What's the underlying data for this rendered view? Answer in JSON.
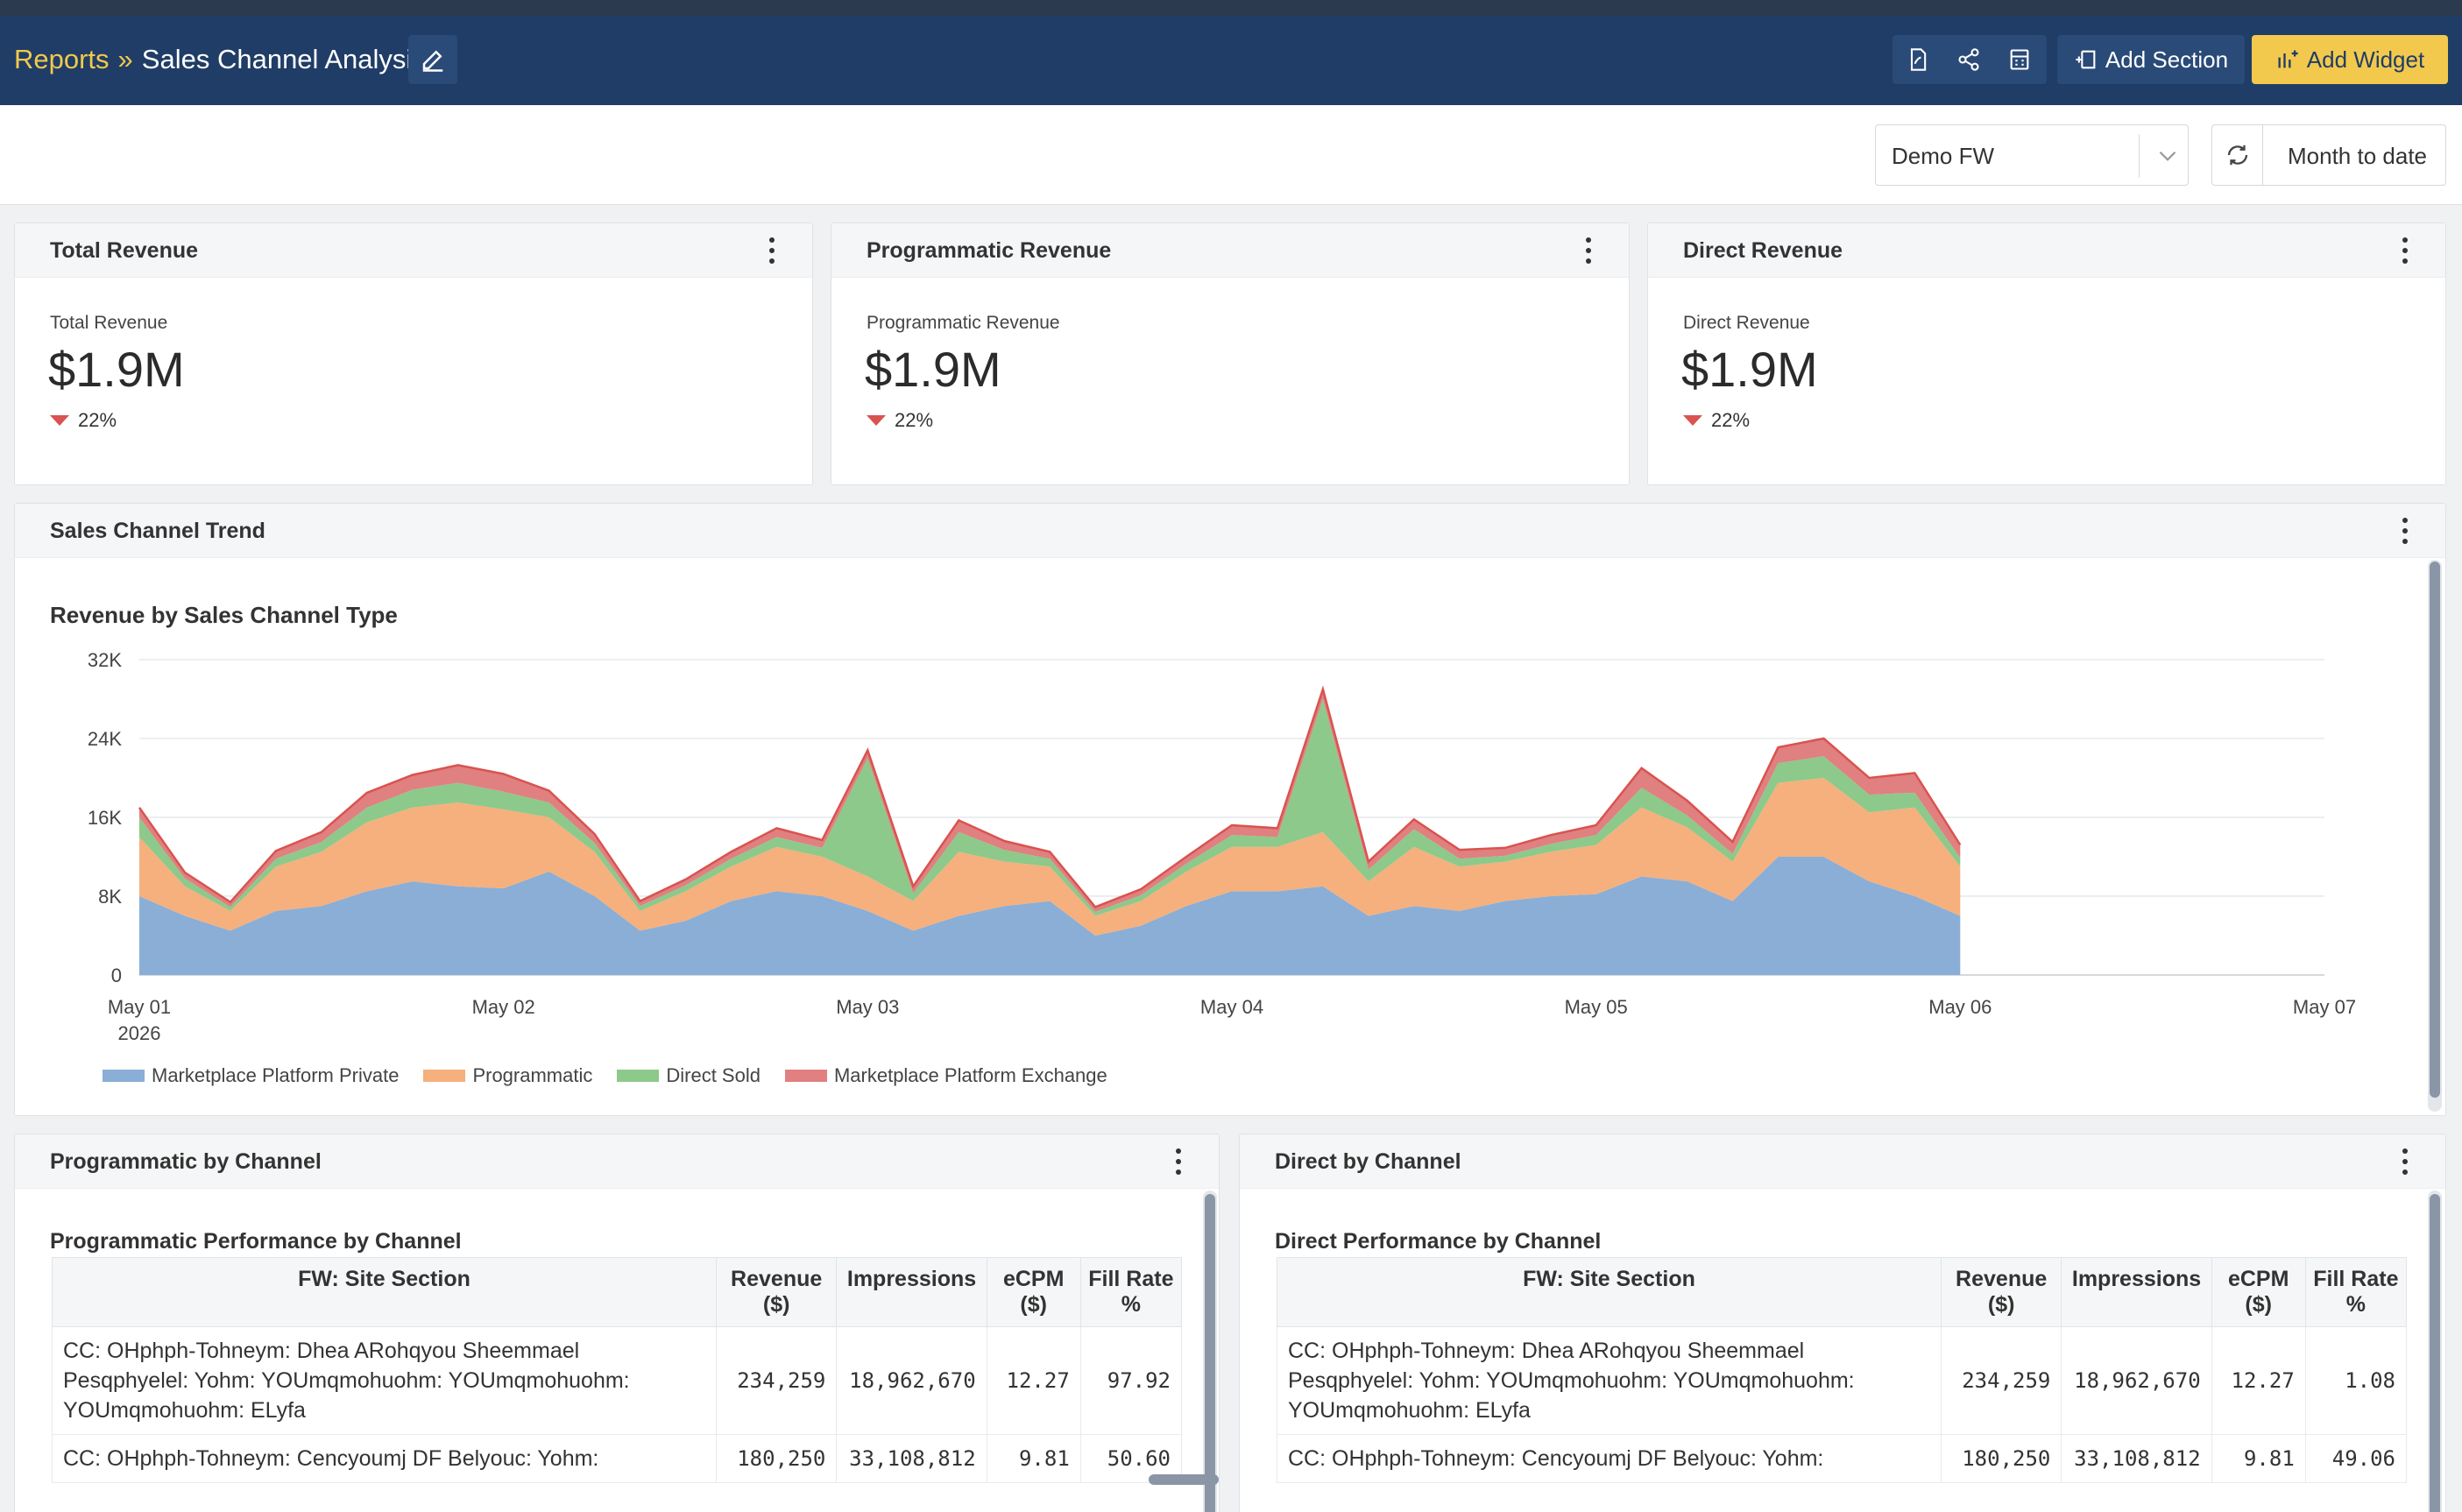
{
  "header": {
    "breadcrumb_link": "Reports",
    "breadcrumb_sep": "»",
    "page_title": "Sales Channel Analysis",
    "add_section_label": "Add Section",
    "add_widget_label": "Add Widget"
  },
  "filters": {
    "network_value": "Demo FW",
    "date_range_label": "Month to date"
  },
  "kpis": [
    {
      "title": "Total Revenue",
      "label": "Total Revenue",
      "value": "$1.9M",
      "change": "22%"
    },
    {
      "title": "Programmatic Revenue",
      "label": "Programmatic Revenue",
      "value": "$1.9M",
      "change": "22%"
    },
    {
      "title": "Direct Revenue",
      "label": "Direct Revenue",
      "value": "$1.9M",
      "change": "22%"
    }
  ],
  "trend": {
    "card_title": "Sales Channel Trend",
    "colors": {
      "private": "#8aaed6",
      "programmatic": "#f5b07d",
      "direct": "#8dc98a",
      "exchange": "#e08080",
      "outline": "#d9534f"
    }
  },
  "chart_data": {
    "type": "area",
    "title": "Revenue by Sales Channel Type",
    "stacked": true,
    "ylim": [
      0,
      32000
    ],
    "y_ticks": [
      "0",
      "8K",
      "16K",
      "24K",
      "32K"
    ],
    "x_ticks": [
      "May 01",
      "May 02",
      "May 03",
      "May 04",
      "May 05",
      "May 06",
      "May 07"
    ],
    "x_tick_sublabel": "2026",
    "x_range_days": [
      0,
      6
    ],
    "x_days": [
      0,
      0.125,
      0.25,
      0.375,
      0.5,
      0.625,
      0.75,
      0.875,
      1,
      1.125,
      1.25,
      1.375,
      1.5,
      1.625,
      1.75,
      1.875,
      2,
      2.125,
      2.25,
      2.375,
      2.5,
      2.625,
      2.75,
      2.875,
      3,
      3.125,
      3.25,
      3.375,
      3.5,
      3.625,
      3.75,
      3.875,
      4,
      4.125,
      4.25,
      4.375,
      4.5,
      4.625,
      4.75,
      4.875,
      5
    ],
    "series": [
      {
        "name": "Marketplace Platform Private",
        "values": [
          8000,
          6000,
          4500,
          6500,
          7000,
          8500,
          9500,
          9000,
          8800,
          10500,
          8000,
          4500,
          5500,
          7500,
          8500,
          8000,
          6500,
          4500,
          6000,
          7000,
          7500,
          4000,
          5000,
          7000,
          8500,
          8500,
          9000,
          6000,
          7000,
          6500,
          7500,
          8000,
          8200,
          10000,
          9500,
          7500,
          12000,
          12000,
          9500,
          8000,
          6000
        ]
      },
      {
        "name": "Programmatic",
        "values": [
          6000,
          3000,
          2000,
          4500,
          5500,
          7000,
          7500,
          8500,
          8000,
          5500,
          4500,
          2000,
          3000,
          3500,
          4500,
          4000,
          3500,
          3000,
          6500,
          4500,
          3500,
          2000,
          2500,
          3500,
          4500,
          4500,
          5500,
          3500,
          6000,
          4500,
          4000,
          4500,
          5000,
          7000,
          5500,
          4000,
          7500,
          8000,
          7000,
          9000,
          5000
        ]
      },
      {
        "name": "Direct Sold",
        "values": [
          2000,
          800,
          400,
          800,
          1000,
          1500,
          1800,
          2000,
          1800,
          1500,
          900,
          500,
          600,
          800,
          1000,
          900,
          12000,
          800,
          2000,
          1200,
          800,
          400,
          600,
          800,
          1200,
          1000,
          13500,
          1200,
          1800,
          800,
          600,
          800,
          1000,
          2000,
          1200,
          800,
          2000,
          2200,
          1800,
          1500,
          900
        ]
      },
      {
        "name": "Marketplace Platform Exchange",
        "values": [
          1000,
          600,
          500,
          800,
          1000,
          1500,
          1500,
          1800,
          1800,
          1200,
          900,
          500,
          600,
          700,
          900,
          800,
          800,
          700,
          1200,
          900,
          700,
          500,
          600,
          700,
          1000,
          900,
          1000,
          800,
          1000,
          900,
          800,
          900,
          1000,
          2000,
          1500,
          1200,
          1600,
          1800,
          1700,
          2000,
          1300
        ]
      }
    ]
  },
  "programmatic_table": {
    "card_title": "Programmatic by Channel",
    "title": "Programmatic Performance by Channel",
    "columns": [
      "FW: Site Section",
      "Revenue ($)",
      "Impressions",
      "eCPM ($)",
      "Fill Rate %"
    ],
    "rows": [
      [
        "CC: OHphph-Tohneym: Dhea ARohqyou Sheemmael Pesqphyelel: Yohm: YOUmqmohuohm: YOUmqmohuohm: YOUmqmohuohm: ELyfa",
        "234,259",
        "18,962,670",
        "12.27",
        "97.92"
      ],
      [
        "CC: OHphph-Tohneym: Cencyoumj DF Belyouc: Yohm:",
        "180,250",
        "33,108,812",
        "9.81",
        "50.60"
      ]
    ]
  },
  "direct_table": {
    "card_title": "Direct by Channel",
    "title": "Direct Performance by Channel",
    "columns": [
      "FW: Site Section",
      "Revenue ($)",
      "Impressions",
      "eCPM ($)",
      "Fill Rate %"
    ],
    "rows": [
      [
        "CC: OHphph-Tohneym: Dhea ARohqyou Sheemmael Pesqphyelel: Yohm: YOUmqmohuohm: YOUmqmohuohm: YOUmqmohuohm: ELyfa",
        "234,259",
        "18,962,670",
        "12.27",
        "1.08"
      ],
      [
        "CC: OHphph-Tohneym: Cencyoumj DF Belyouc: Yohm:",
        "180,250",
        "33,108,812",
        "9.81",
        "49.06"
      ]
    ]
  },
  "icons": [
    "pencil-icon",
    "pdf-icon",
    "share-icon",
    "calculator-icon",
    "add-section-icon",
    "add-widget-icon",
    "chevron-down-icon",
    "refresh-icon",
    "kebab-icon",
    "down-triangle-icon"
  ]
}
